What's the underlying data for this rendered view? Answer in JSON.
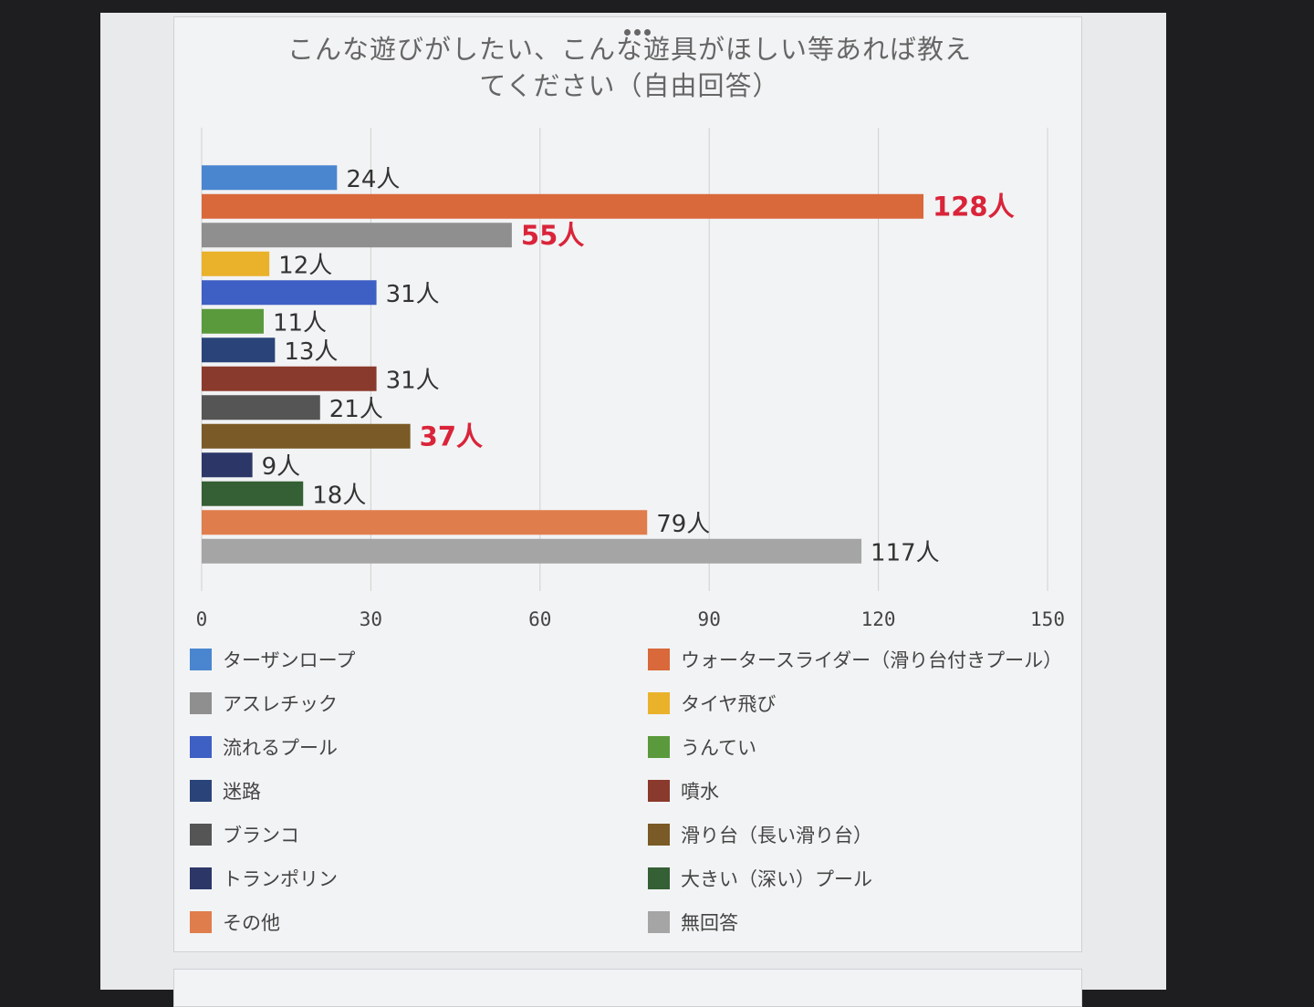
{
  "chart_data": {
    "type": "bar",
    "orientation": "horizontal",
    "title": "こんな遊びがしたい、こんな遊具がほしい等あれば教えてください（自由回答）",
    "title_lines": [
      "こんな遊びがしたい、こんな遊具がほしい等あれば教え",
      "てください（自由回答）"
    ],
    "value_suffix": "人",
    "xlim": [
      0,
      150
    ],
    "xticks": [
      0,
      30,
      60,
      90,
      120,
      150
    ],
    "grid": true,
    "legend_position": "bottom",
    "categories": [
      "ターザンロープ",
      "ウォータースライダー（滑り台付きプール）",
      "アスレチック",
      "タイヤ飛び",
      "流れるプール",
      "うんてい",
      "迷路",
      "噴水",
      "ブランコ",
      "滑り台（長い滑り台）",
      "トランポリン",
      "大きい（深い）プール",
      "その他",
      "無回答"
    ],
    "values": [
      24,
      128,
      55,
      12,
      31,
      11,
      13,
      31,
      21,
      37,
      9,
      18,
      79,
      117
    ],
    "data_labels": [
      "24人",
      "128人",
      "55人",
      "12人",
      "31人",
      "11人",
      "13人",
      "31人",
      "21人",
      "37人",
      "9人",
      "18人",
      "79人",
      "117人"
    ],
    "colors": [
      "#4a86cf",
      "#d9683a",
      "#8f8f8f",
      "#eab12a",
      "#3e5fc4",
      "#5a9a3c",
      "#2a4479",
      "#8a3a2c",
      "#555555",
      "#7a5a26",
      "#2c3768",
      "#355f35",
      "#e07d4c",
      "#a5a5a5"
    ],
    "highlighted": [
      false,
      true,
      true,
      false,
      false,
      false,
      false,
      false,
      false,
      true,
      false,
      false,
      false,
      false
    ],
    "label_color": "#333333",
    "highlight_color": "#d9243a"
  }
}
